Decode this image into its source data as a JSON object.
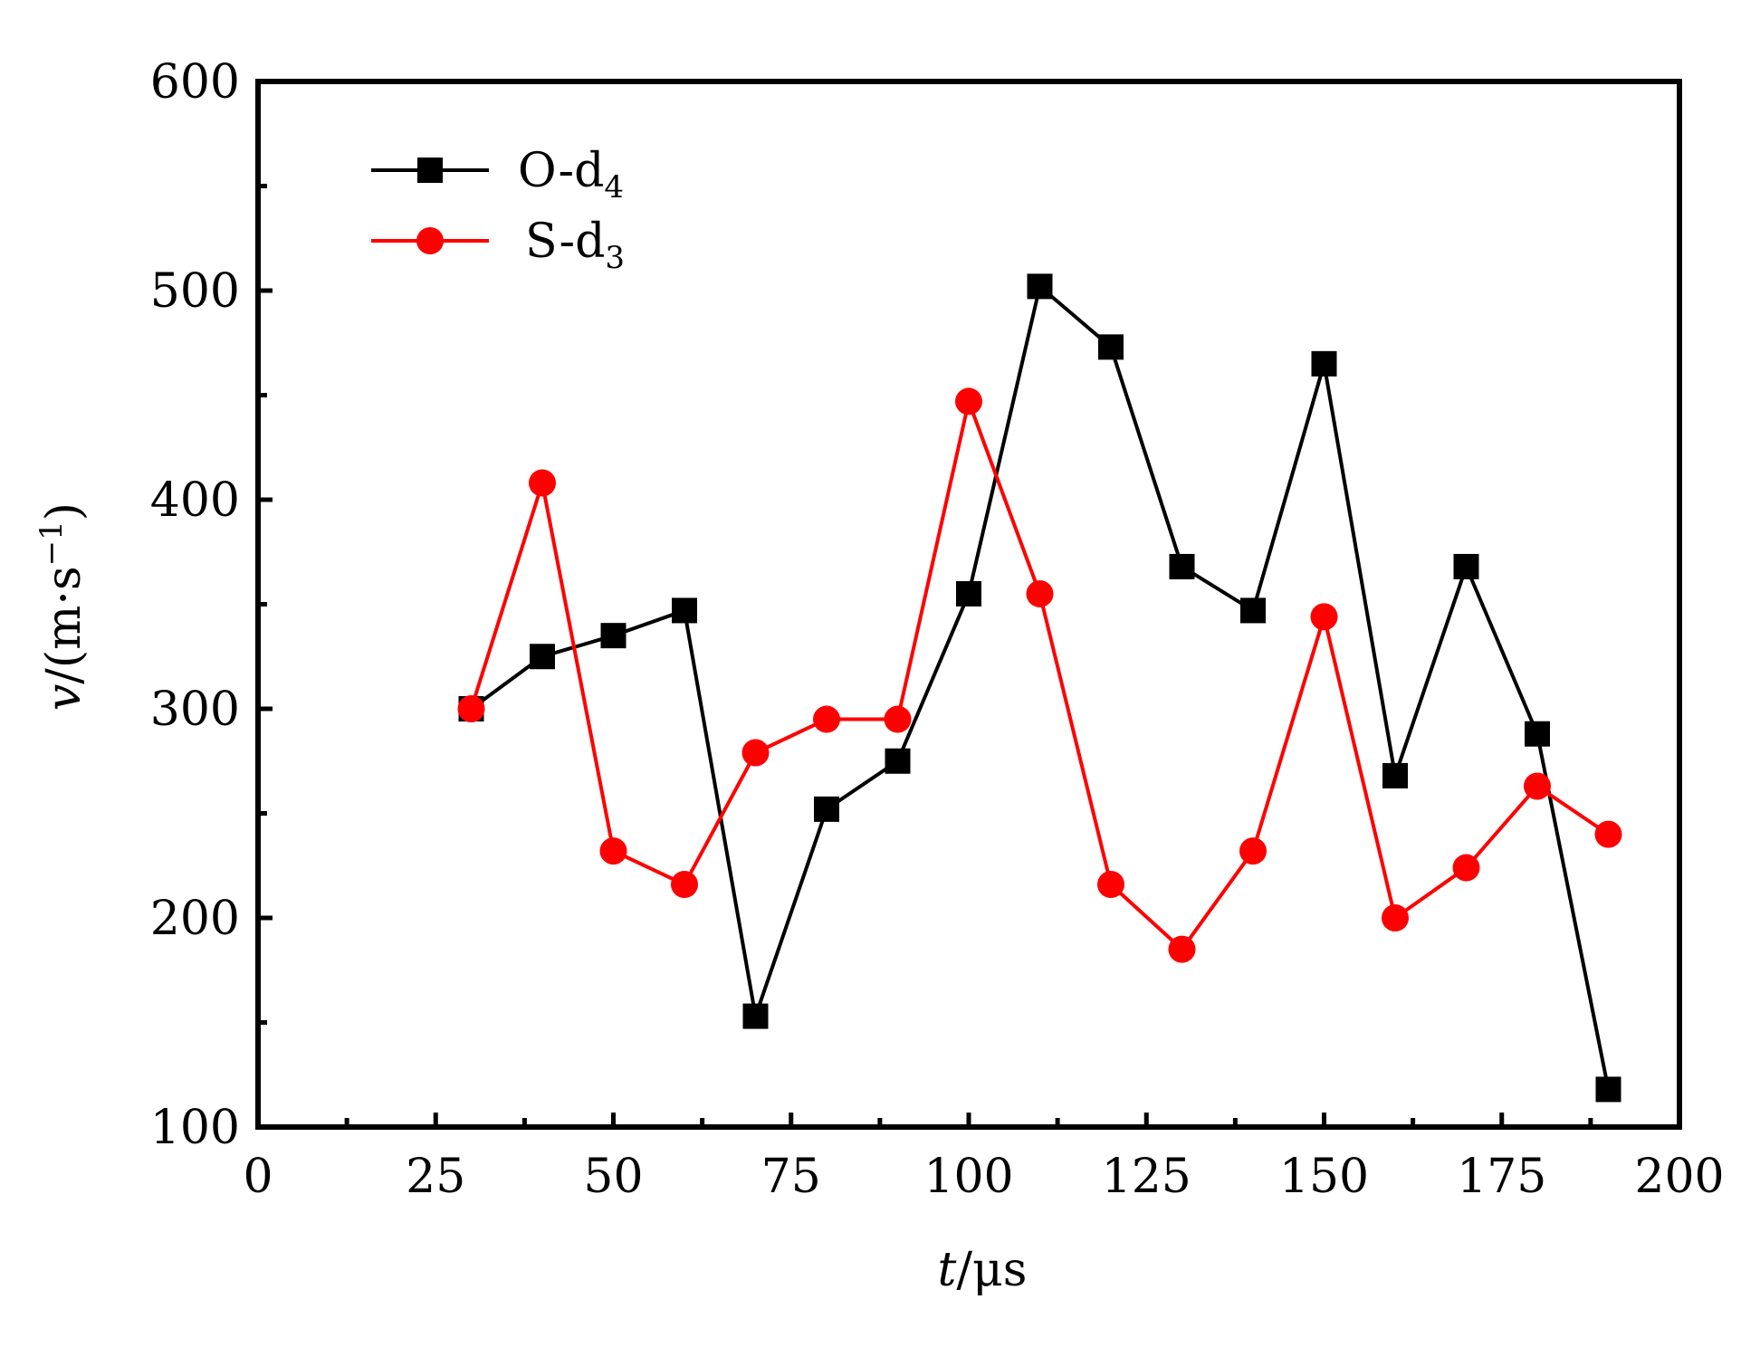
{
  "chart_data": {
    "type": "line",
    "xlabel_var": "t",
    "xlabel_unit": "/μs",
    "ylabel_var": "v",
    "ylabel_unit": "/(m·s",
    "ylabel_exp": "−1",
    "ylabel_close": ")",
    "xlim": [
      0,
      200
    ],
    "ylim": [
      100,
      600
    ],
    "xticks": [
      "0",
      "25",
      "50",
      "75",
      "100",
      "125",
      "150",
      "175",
      "200"
    ],
    "yticks": [
      "100",
      "200",
      "300",
      "400",
      "500",
      "600"
    ],
    "grid": false,
    "legend_position": "top-left",
    "x": [
      30,
      40,
      50,
      60,
      70,
      80,
      90,
      100,
      110,
      120,
      130,
      140,
      150,
      160,
      170,
      180,
      190
    ],
    "series": [
      {
        "name": "O-d",
        "name_sub": "4",
        "marker": "square",
        "color": "#000000",
        "values": [
          300,
          325,
          335,
          347,
          153,
          252,
          275,
          355,
          502,
          473,
          368,
          347,
          465,
          268,
          368,
          288,
          118
        ]
      },
      {
        "name": "S-d",
        "name_sub": "3",
        "marker": "circle",
        "color": "#ff0000",
        "values": [
          300,
          408,
          232,
          216,
          279,
          295,
          295,
          447,
          355,
          216,
          185,
          232,
          344,
          200,
          224,
          263,
          240
        ]
      }
    ]
  }
}
